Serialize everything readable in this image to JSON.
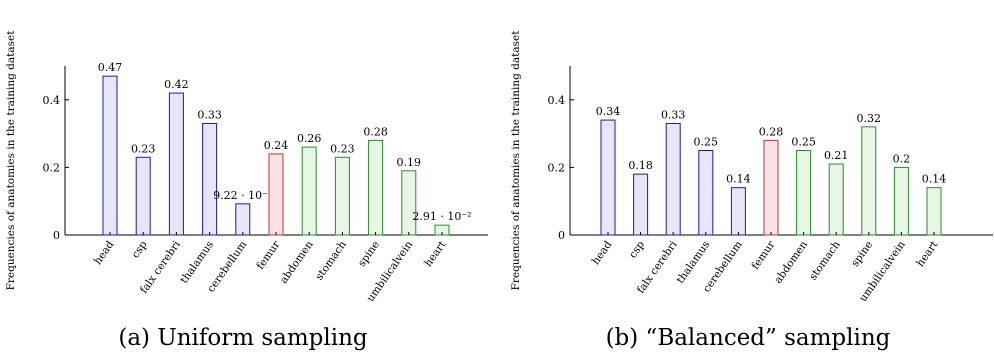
{
  "colors": {
    "blue_fill": "#e6e6f7",
    "blue_stroke": "#1a1ab0",
    "red_fill": "#fbe3e3",
    "red_stroke": "#c03030",
    "green_fill": "#e6f7e6",
    "green_stroke": "#2a8a2a"
  },
  "chart_data": [
    {
      "type": "bar",
      "caption": "(a) Uniform sampling",
      "ylabel": "Frequencies of anatomies in the training dataset",
      "ylim": [
        0,
        0.5
      ],
      "yticks": [
        0,
        0.2,
        0.4
      ],
      "ytick_labels": [
        "0",
        "0.2",
        "0.4"
      ],
      "categories": [
        "head",
        "csp",
        "falx cerebri",
        "thalamus",
        "cerebellum",
        "femur",
        "abdomen",
        "stomach",
        "spine",
        "umbilicalvein",
        "heart"
      ],
      "values": [
        0.47,
        0.23,
        0.42,
        0.33,
        0.0922,
        0.24,
        0.26,
        0.23,
        0.28,
        0.19,
        0.0291
      ],
      "value_labels": [
        "0.47",
        "0.23",
        "0.42",
        "0.33",
        "9.22 · 10⁻²",
        "0.24",
        "0.26",
        "0.23",
        "0.28",
        "0.19",
        "2.91 · 10⁻²"
      ],
      "groups": [
        "blue",
        "blue",
        "blue",
        "blue",
        "blue",
        "red",
        "green",
        "green",
        "green",
        "green",
        "green"
      ]
    },
    {
      "type": "bar",
      "caption": "(b) “Balanced” sampling",
      "ylabel": "Frequencies of anatomies in the training dataset",
      "ylim": [
        0,
        0.5
      ],
      "yticks": [
        0,
        0.2,
        0.4
      ],
      "ytick_labels": [
        "0",
        "0.2",
        "0.4"
      ],
      "categories": [
        "head",
        "csp",
        "falx cerebri",
        "thalamus",
        "cerebellum",
        "femur",
        "abdomen",
        "stomach",
        "spine",
        "umbilicalvein",
        "heart"
      ],
      "values": [
        0.34,
        0.18,
        0.33,
        0.25,
        0.14,
        0.28,
        0.25,
        0.21,
        0.32,
        0.2,
        0.14
      ],
      "value_labels": [
        "0.34",
        "0.18",
        "0.33",
        "0.25",
        "0.14",
        "0.28",
        "0.25",
        "0.21",
        "0.32",
        "0.2",
        "0.14"
      ],
      "groups": [
        "blue",
        "blue",
        "blue",
        "blue",
        "blue",
        "red",
        "green",
        "green",
        "green",
        "green",
        "green"
      ]
    }
  ]
}
